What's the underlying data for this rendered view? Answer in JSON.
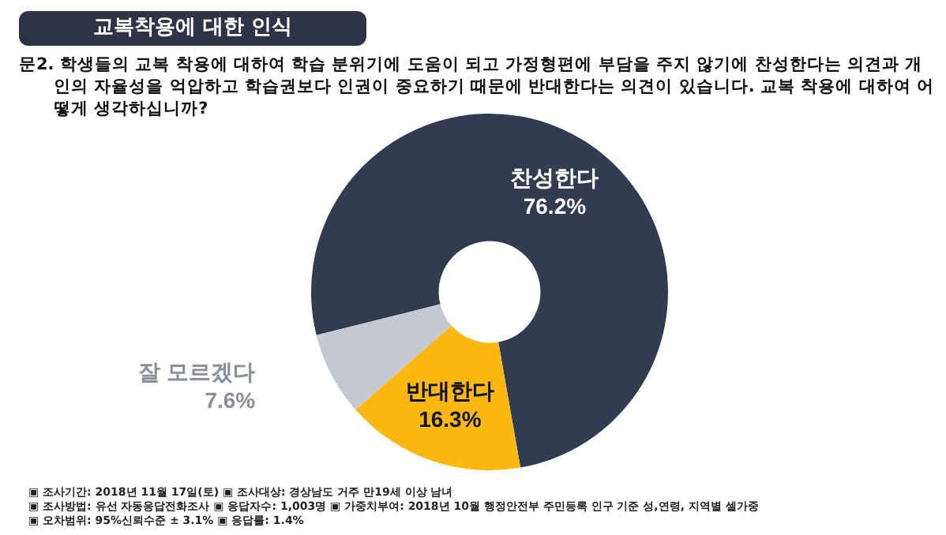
{
  "chart_data": {
    "type": "donut",
    "title": "교복착용에 대한 인식",
    "subtitle": "문2. 학생들의 교복 착용에 대하여 학습 분위기에 도움이 되고 가정형편에 부담을 주지 않기에 찬성한다는 의견과 개인의 자율성을 억압하고 학습권보다 인권이 중요하기 때문에 반대한다는 의견이 있습니다. 교복 착용에 대하여 어떻게 생각하십니까?",
    "categories": [
      "찬성한다",
      "반대한다",
      "잘 모르겠다"
    ],
    "values": [
      76.2,
      16.3,
      7.6
    ],
    "value_labels": [
      "76.2%",
      "16.3%",
      "7.6%"
    ],
    "colors": [
      "#323c50",
      "#fbb812",
      "#c4c8d0"
    ],
    "legend": false,
    "annotations": [
      "▣ 조사기간: 2018년 11월 17일(토) ▣ 조사대상: 경상남도 거주 만19세 이상 남녀",
      "▣ 조사방법: 유선 자동응답전화조사 ▣ 응답자수: 1,003명 ▣ 가중치부여: 2018년 10월 행정안전부 주민등록 인구 기준 성,연령, 지역별 셀가중",
      "▣ 오차범위: 95%신뢰수준 ± 3.1% ▣ 응답률: 1.4%"
    ]
  }
}
